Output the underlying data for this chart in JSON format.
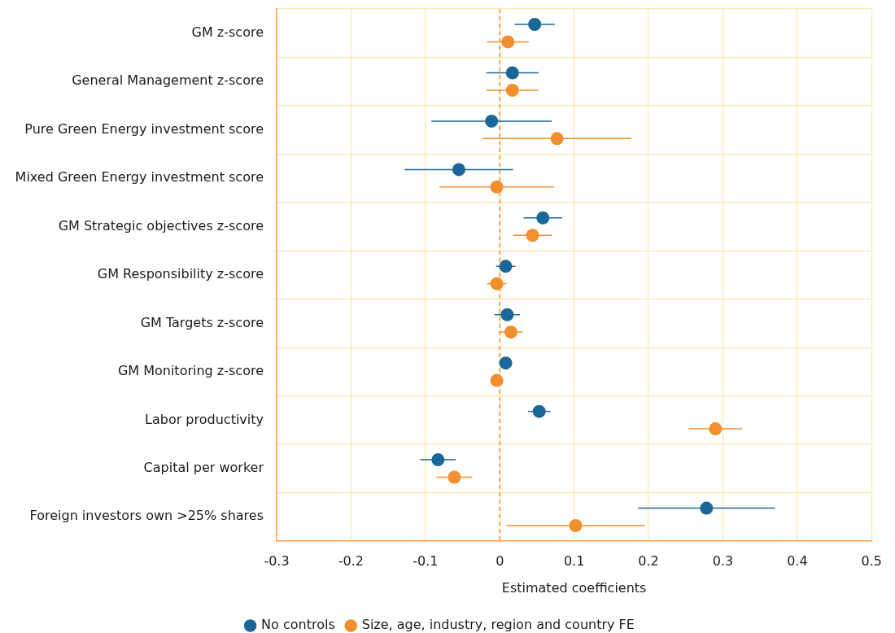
{
  "chart_data": {
    "type": "scatter",
    "orientation": "horizontal",
    "categories": [
      "GM z-score",
      "General Management z-score",
      "Pure Green Energy investment score",
      "Mixed Green Energy investment score",
      "GM Strategic objectives z-score",
      "GM Responsibility z-score",
      "GM Targets z-score",
      "GM Monitoring z-score",
      "Labor productivity",
      "Capital per worker",
      "Foreign investors own >25% shares"
    ],
    "series": [
      {
        "name": "No controls",
        "color": "#1c6799",
        "values": [
          0.047,
          0.017,
          -0.011,
          -0.055,
          0.058,
          0.008,
          0.01,
          0.008,
          0.053,
          -0.083,
          0.278
        ],
        "errors": [
          0.027,
          0.035,
          0.081,
          0.073,
          0.026,
          0.013,
          0.017,
          null,
          0.015,
          0.024,
          0.092
        ]
      },
      {
        "name": "Size, age, industry, region and country FE",
        "color": "#f28e2c",
        "values": [
          0.011,
          0.017,
          0.077,
          -0.004,
          0.044,
          -0.004,
          0.015,
          -0.004,
          0.29,
          -0.061,
          0.102
        ],
        "errors": [
          0.028,
          0.035,
          0.1,
          0.077,
          0.026,
          0.013,
          0.016,
          null,
          0.036,
          0.024,
          0.093
        ]
      }
    ],
    "xlim": [
      -0.3,
      0.5
    ],
    "xticks": [
      -0.3,
      -0.2,
      -0.1,
      0,
      0.1,
      0.2,
      0.3,
      0.4,
      0.5
    ],
    "xlabel": "Estimated coefficients",
    "ref_lines": [
      {
        "axis": "x",
        "value": 0,
        "color": "#f28e2c",
        "line_style": "dashed"
      }
    ],
    "grid": true,
    "legend": "bottom",
    "marker": "circle"
  }
}
